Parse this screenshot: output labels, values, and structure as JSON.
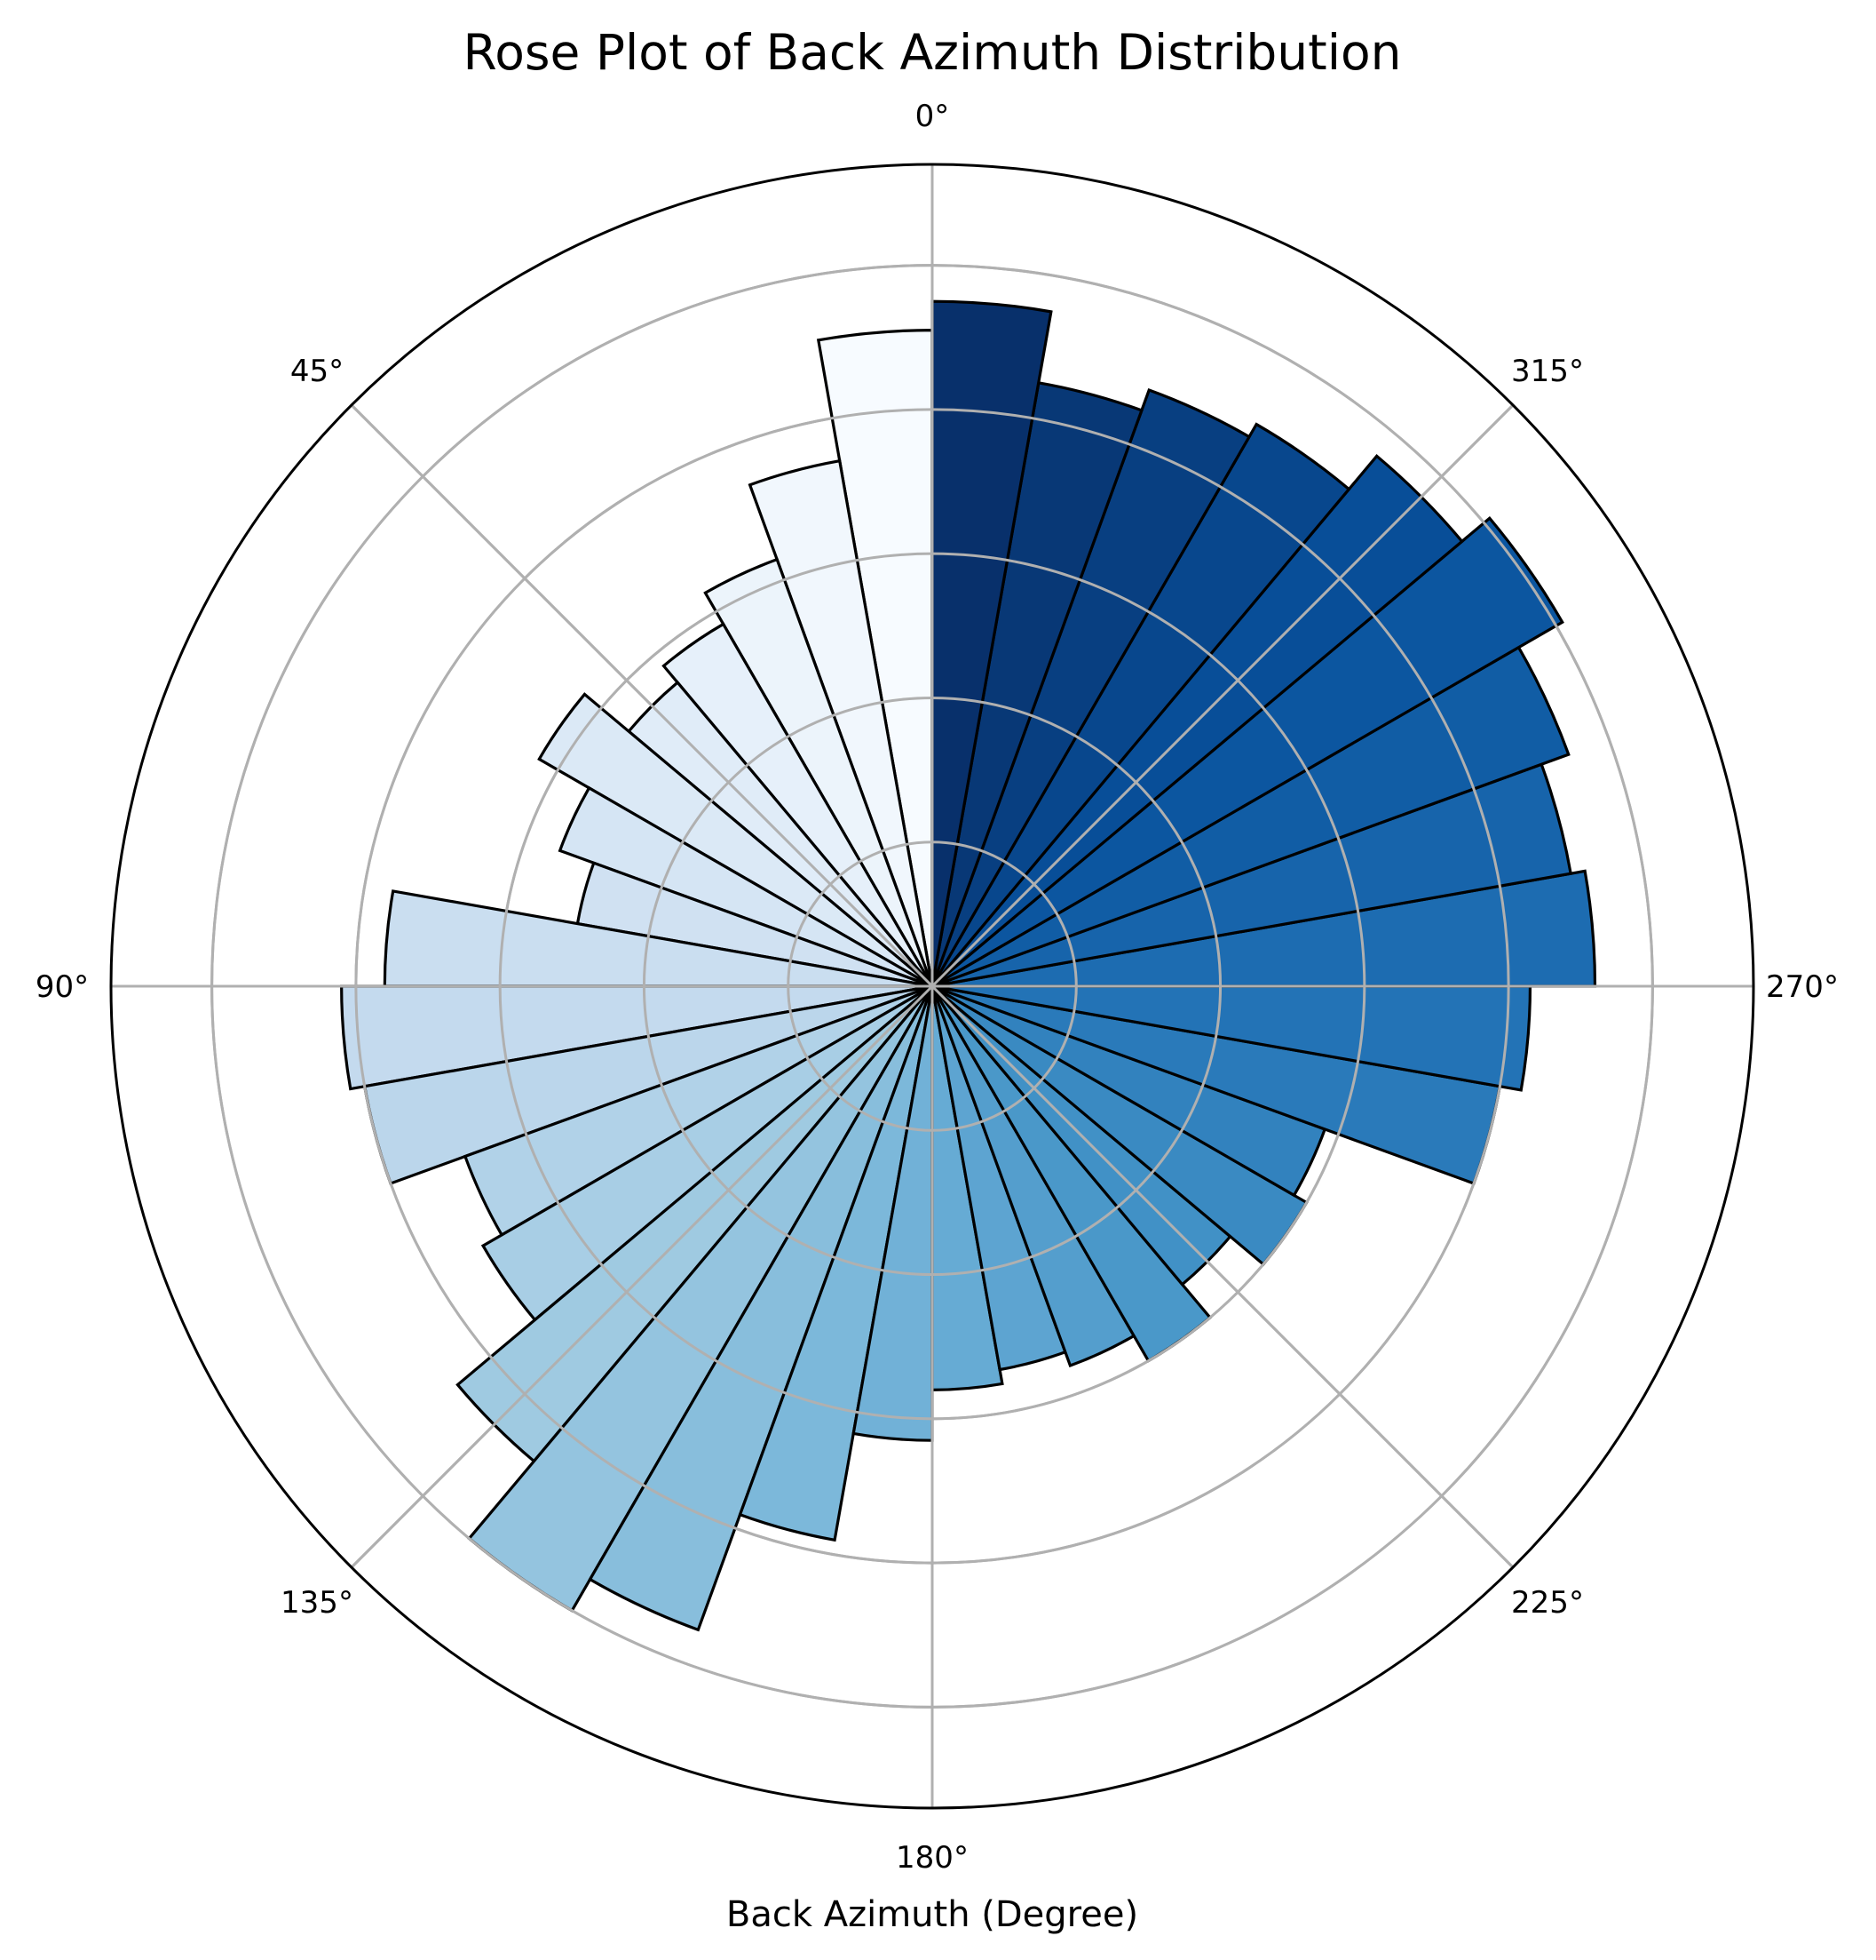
{
  "chart_data": {
    "type": "bar",
    "projection": "polar",
    "theta_zero": "N",
    "theta_direction": "counterclockwise",
    "title": "Rose Plot of Back Azimuth Distribution",
    "xlabel": "Back Azimuth (Degree)",
    "theta_tick_labels": [
      "0°",
      "45°",
      "90°",
      "135°",
      "180°",
      "225°",
      "270°",
      "315°"
    ],
    "radial_grid_values": [
      20,
      40,
      60,
      80,
      100
    ],
    "rlim": [
      0,
      114
    ],
    "bin_width_deg": 10,
    "categories": [
      "0-10°",
      "10-20°",
      "20-30°",
      "30-40°",
      "40-50°",
      "50-60°",
      "60-70°",
      "70-80°",
      "80-90°",
      "90-100°",
      "100-110°",
      "110-120°",
      "120-130°",
      "130-140°",
      "140-150°",
      "150-160°",
      "160-170°",
      "170-180°",
      "180-190°",
      "190-200°",
      "200-210°",
      "210-220°",
      "220-230°",
      "230-240°",
      "240-250°",
      "250-260°",
      "260-270°",
      "270-280°",
      "280-290°",
      "290-300°",
      "300-310°",
      "310-320°",
      "320-330°",
      "330-340°",
      "340-350°",
      "350-360°"
    ],
    "values": [
      91,
      74,
      63,
      58,
      55,
      63,
      55,
      50,
      76,
      82,
      80,
      69,
      72,
      86,
      100,
      95,
      78,
      63,
      56,
      54,
      56,
      60,
      54,
      60,
      58,
      80,
      83,
      92,
      90,
      94,
      101,
      96,
      90,
      88,
      85,
      95
    ],
    "colormap": "Blues",
    "grid": true,
    "legend": "none"
  }
}
